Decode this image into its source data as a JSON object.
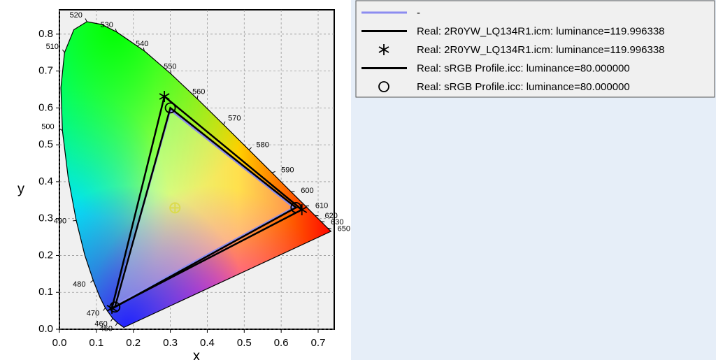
{
  "chart_data": {
    "type": "cie",
    "xlabel": "x",
    "ylabel": "y",
    "xlim": [
      0,
      0.7435
    ],
    "ylim": [
      0,
      0.866
    ],
    "xticks": [
      {
        "value": 0,
        "label": "0.0"
      },
      0.1,
      0.2,
      0.3,
      0.4,
      0.5,
      0.6,
      0.7
    ],
    "yticks": [
      {
        "value": 0,
        "label": "0.0"
      },
      0.1,
      0.2,
      0.3,
      0.4,
      0.5,
      0.6,
      0.7,
      0.8
    ],
    "grid": true,
    "locus": {
      "x": [
        0.1741,
        0.1566,
        0.144,
        0.1241,
        0.1096,
        0.0913,
        0.0687,
        0.0454,
        0.0235,
        0.0082,
        0.0039,
        0.0139,
        0.0389,
        0.0743,
        0.1142,
        0.1547,
        0.2296,
        0.3016,
        0.3731,
        0.4441,
        0.5125,
        0.5752,
        0.627,
        0.6658,
        0.6915,
        0.7079,
        0.726,
        0.7347
      ],
      "y": [
        0.005,
        0.0177,
        0.0297,
        0.0578,
        0.0868,
        0.1327,
        0.2007,
        0.295,
        0.4127,
        0.5384,
        0.6548,
        0.7502,
        0.812,
        0.8338,
        0.8262,
        0.8059,
        0.7543,
        0.6923,
        0.6245,
        0.5547,
        0.4866,
        0.4242,
        0.3725,
        0.334,
        0.3083,
        0.292,
        0.274,
        0.2653
      ],
      "labels": [
        null,
        450,
        460,
        470,
        null,
        480,
        null,
        490,
        null,
        500,
        null,
        510,
        null,
        520,
        null,
        530,
        540,
        550,
        560,
        570,
        580,
        590,
        600,
        610,
        620,
        630,
        650,
        null
      ]
    },
    "white_point": {
      "x": 0.3127,
      "y": 0.329
    },
    "series": [
      {
        "name": "-",
        "color": "#8c8cf0",
        "style": "line",
        "x": [
          0.635,
          0.3,
          0.15
        ],
        "y": [
          0.33,
          0.595,
          0.065
        ]
      },
      {
        "name": "Real: 2R0YW_LQ134R1.icm: luminance=119.996338",
        "color": "#000000",
        "style": "line",
        "x": [
          0.656,
          0.284,
          0.142
        ],
        "y": [
          0.324,
          0.631,
          0.057
        ]
      },
      {
        "name": "Real: 2R0YW_LQ134R1.icm: luminance=119.996338",
        "color": "#000000",
        "style": "star",
        "x": [
          0.656,
          0.284,
          0.142
        ],
        "y": [
          0.324,
          0.631,
          0.057
        ]
      },
      {
        "name": "Real: sRGB Profile.icc: luminance=80.000000",
        "color": "#000000",
        "style": "line",
        "x": [
          0.64,
          0.3,
          0.15
        ],
        "y": [
          0.33,
          0.6,
          0.06
        ]
      },
      {
        "name": "Real: sRGB Profile.icc: luminance=80.000000",
        "color": "#000000",
        "style": "circle",
        "x": [
          0.64,
          0.3,
          0.15
        ],
        "y": [
          0.33,
          0.6,
          0.06
        ]
      }
    ]
  }
}
